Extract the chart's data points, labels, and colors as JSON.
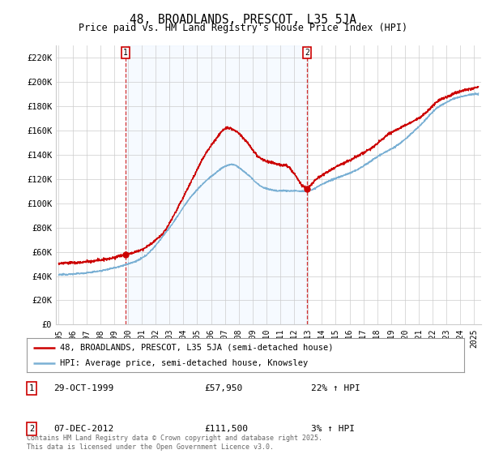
{
  "title": "48, BROADLANDS, PRESCOT, L35 5JA",
  "subtitle": "Price paid vs. HM Land Registry's House Price Index (HPI)",
  "ylabel_ticks": [
    "£0",
    "£20K",
    "£40K",
    "£60K",
    "£80K",
    "£100K",
    "£120K",
    "£140K",
    "£160K",
    "£180K",
    "£200K",
    "£220K"
  ],
  "ytick_values": [
    0,
    20000,
    40000,
    60000,
    80000,
    100000,
    120000,
    140000,
    160000,
    180000,
    200000,
    220000
  ],
  "ylim": [
    0,
    230000
  ],
  "xlim_start": 1994.8,
  "xlim_end": 2025.5,
  "point1_x": 1999.83,
  "point1_y": 57950,
  "point1_label": "29-OCT-1999",
  "point1_price": "£57,950",
  "point1_hpi": "22% ↑ HPI",
  "point2_x": 2012.92,
  "point2_y": 111500,
  "point2_label": "07-DEC-2012",
  "point2_price": "£111,500",
  "point2_hpi": "3% ↑ HPI",
  "line1_color": "#cc0000",
  "line2_color": "#7ab0d4",
  "shade_color": "#ddeeff",
  "line1_label": "48, BROADLANDS, PRESCOT, L35 5JA (semi-detached house)",
  "line2_label": "HPI: Average price, semi-detached house, Knowsley",
  "footer": "Contains HM Land Registry data © Crown copyright and database right 2025.\nThis data is licensed under the Open Government Licence v3.0.",
  "background_color": "#ffffff",
  "grid_color": "#cccccc",
  "title_fontsize": 11,
  "subtitle_fontsize": 9
}
